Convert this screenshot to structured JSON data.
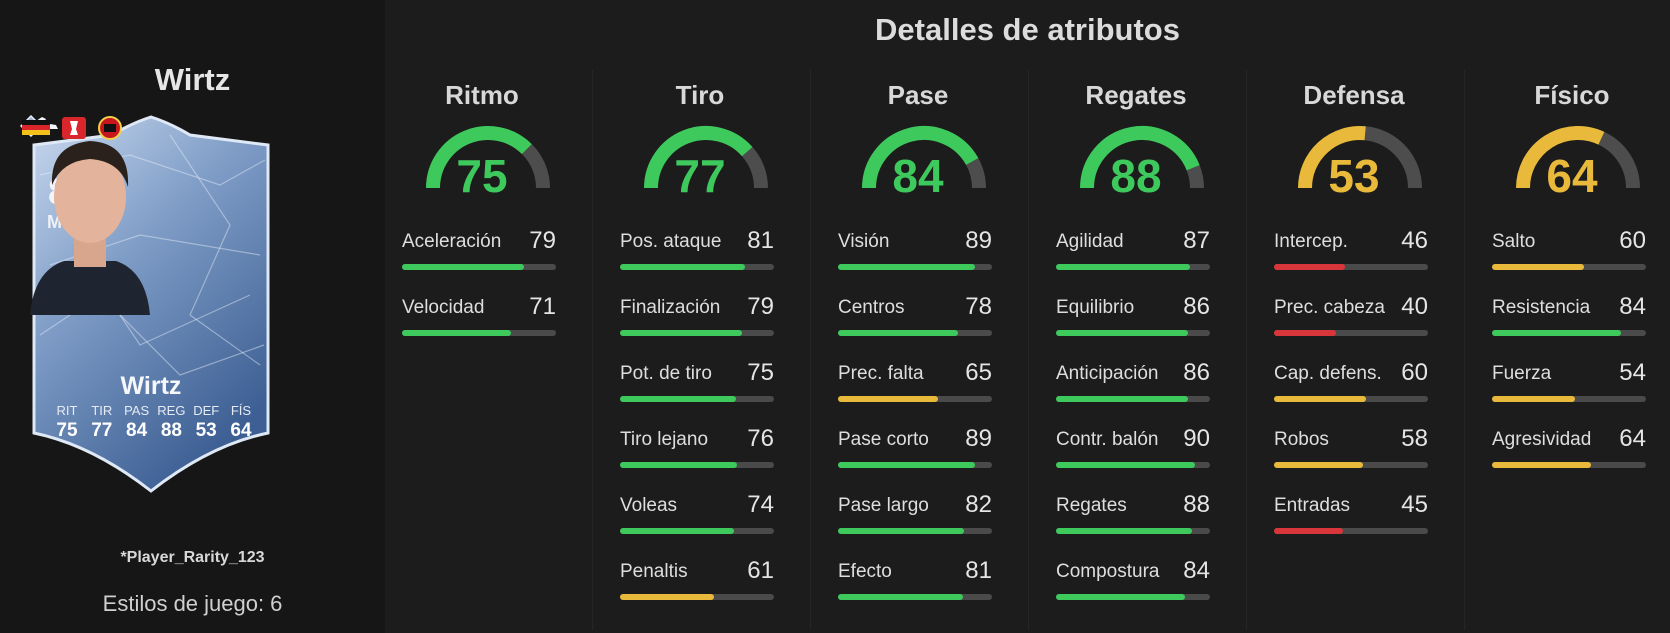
{
  "player": {
    "name": "Wirtz",
    "card": {
      "rating": "86",
      "position": "MCO",
      "name": "Wirtz",
      "stats": [
        {
          "label": "RIT",
          "value": "75"
        },
        {
          "label": "TIR",
          "value": "77"
        },
        {
          "label": "PAS",
          "value": "84"
        },
        {
          "label": "REG",
          "value": "88"
        },
        {
          "label": "DEF",
          "value": "53"
        },
        {
          "label": "FÍS",
          "value": "64"
        }
      ]
    },
    "rarity": "*Player_Rarity_123",
    "playstyles_label": "Estilos de juego:",
    "playstyles_count": "6"
  },
  "attributes_title": "Detalles de atributos",
  "colors": {
    "high": "#3ec95d",
    "mid": "#e8b93a",
    "low": "#d8363a",
    "track": "#4a4a4a"
  },
  "columns": [
    {
      "title": "Ritmo",
      "value": 75,
      "color": "high",
      "stats": [
        {
          "label": "Aceleración",
          "value": 79,
          "color": "high"
        },
        {
          "label": "Velocidad",
          "value": 71,
          "color": "high"
        }
      ]
    },
    {
      "title": "Tiro",
      "value": 77,
      "color": "high",
      "stats": [
        {
          "label": "Pos. ataque",
          "value": 81,
          "color": "high"
        },
        {
          "label": "Finalización",
          "value": 79,
          "color": "high"
        },
        {
          "label": "Pot. de tiro",
          "value": 75,
          "color": "high"
        },
        {
          "label": "Tiro lejano",
          "value": 76,
          "color": "high"
        },
        {
          "label": "Voleas",
          "value": 74,
          "color": "high"
        },
        {
          "label": "Penaltis",
          "value": 61,
          "color": "mid"
        }
      ]
    },
    {
      "title": "Pase",
      "value": 84,
      "color": "high",
      "stats": [
        {
          "label": "Visión",
          "value": 89,
          "color": "high"
        },
        {
          "label": "Centros",
          "value": 78,
          "color": "high"
        },
        {
          "label": "Prec. falta",
          "value": 65,
          "color": "mid"
        },
        {
          "label": "Pase corto",
          "value": 89,
          "color": "high"
        },
        {
          "label": "Pase largo",
          "value": 82,
          "color": "high"
        },
        {
          "label": "Efecto",
          "value": 81,
          "color": "high"
        }
      ]
    },
    {
      "title": "Regates",
      "value": 88,
      "color": "high",
      "stats": [
        {
          "label": "Agilidad",
          "value": 87,
          "color": "high"
        },
        {
          "label": "Equilibrio",
          "value": 86,
          "color": "high"
        },
        {
          "label": "Anticipación",
          "value": 86,
          "color": "high"
        },
        {
          "label": "Contr. balón",
          "value": 90,
          "color": "high"
        },
        {
          "label": "Regates",
          "value": 88,
          "color": "high"
        },
        {
          "label": "Compostura",
          "value": 84,
          "color": "high"
        }
      ]
    },
    {
      "title": "Defensa",
      "value": 53,
      "color": "mid",
      "stats": [
        {
          "label": "Intercep.",
          "value": 46,
          "color": "low"
        },
        {
          "label": "Prec. cabeza",
          "value": 40,
          "color": "low"
        },
        {
          "label": "Cap. defens.",
          "value": 60,
          "color": "mid"
        },
        {
          "label": "Robos",
          "value": 58,
          "color": "mid"
        },
        {
          "label": "Entradas",
          "value": 45,
          "color": "low"
        }
      ]
    },
    {
      "title": "Físico",
      "value": 64,
      "color": "mid",
      "stats": [
        {
          "label": "Salto",
          "value": 60,
          "color": "mid"
        },
        {
          "label": "Resistencia",
          "value": 84,
          "color": "high"
        },
        {
          "label": "Fuerza",
          "value": 54,
          "color": "mid"
        },
        {
          "label": "Agresividad",
          "value": 64,
          "color": "mid"
        }
      ]
    }
  ]
}
